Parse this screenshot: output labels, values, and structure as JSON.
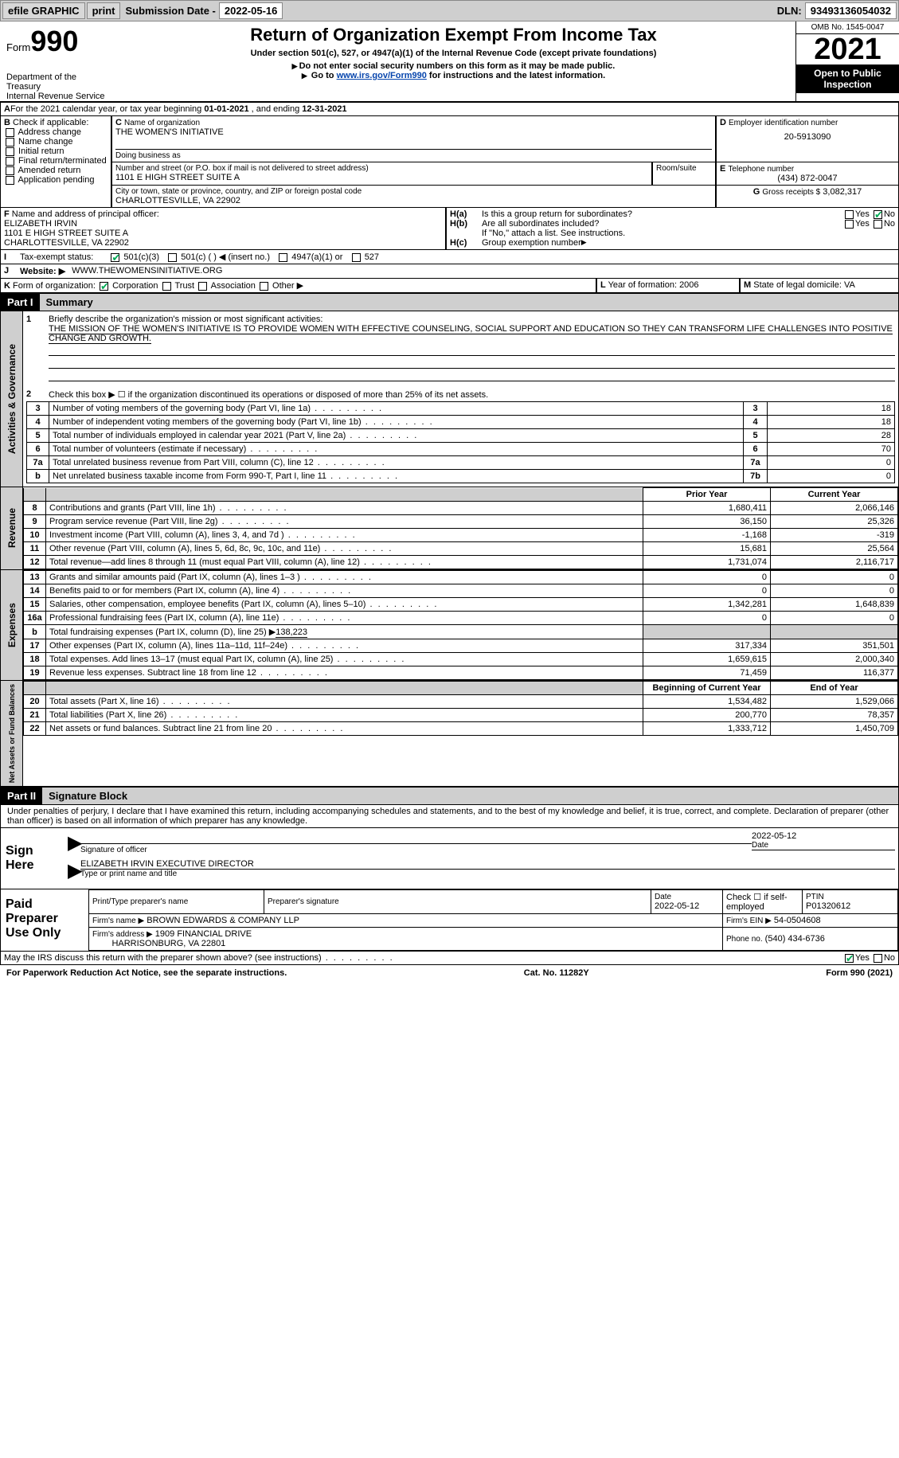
{
  "toolbar": {
    "efile_label": "efile GRAPHIC",
    "print_label": "print",
    "submission_label": "Submission Date -",
    "submission_date": "2022-05-16",
    "dln_label": "DLN:",
    "dln": "93493136054032"
  },
  "header": {
    "form_prefix": "Form",
    "form_number": "990",
    "dept": "Department of the Treasury",
    "irs": "Internal Revenue Service",
    "title": "Return of Organization Exempt From Income Tax",
    "subtitle": "Under section 501(c), 527, or 4947(a)(1) of the Internal Revenue Code (except private foundations)",
    "note1": "Do not enter social security numbers on this form as it may be made public.",
    "note2_prefix": "Go to ",
    "note2_link": "www.irs.gov/Form990",
    "note2_suffix": " for instructions and the latest information.",
    "omb": "OMB No. 1545-0047",
    "year": "2021",
    "inspection": "Open to Public Inspection"
  },
  "line_a": {
    "text_prefix": "For the 2021 calendar year, or tax year beginning ",
    "begin": "01-01-2021",
    "mid": " , and ending ",
    "end": "12-31-2021"
  },
  "box_b": {
    "label": "Check if applicable:",
    "items": [
      "Address change",
      "Name change",
      "Initial return",
      "Final return/terminated",
      "Amended return",
      "Application pending"
    ]
  },
  "box_c": {
    "label": "Name of organization",
    "name": "THE WOMEN'S INITIATIVE",
    "dba_label": "Doing business as",
    "addr_label": "Number and street (or P.O. box if mail is not delivered to street address)",
    "addr": "1101 E HIGH STREET SUITE A",
    "room_label": "Room/suite",
    "city_label": "City or town, state or province, country, and ZIP or foreign postal code",
    "city": "CHARLOTTESVILLE, VA  22902"
  },
  "box_d": {
    "label": "Employer identification number",
    "value": "20-5913090"
  },
  "box_e": {
    "label": "Telephone number",
    "value": "(434) 872-0047"
  },
  "box_g": {
    "label": "Gross receipts $",
    "value": "3,082,317"
  },
  "box_f": {
    "label": "Name and address of principal officer:",
    "name": "ELIZABETH IRVIN",
    "addr1": "1101 E HIGH STREET SUITE A",
    "addr2": "CHARLOTTESVILLE, VA  22902"
  },
  "box_h": {
    "ha": "Is this a group return for subordinates?",
    "hb": "Are all subordinates included?",
    "hnote": "If \"No,\" attach a list. See instructions.",
    "hc": "Group exemption number",
    "yes": "Yes",
    "no": "No"
  },
  "line_i": {
    "label": "Tax-exempt status:",
    "opts": [
      "501(c)(3)",
      "501(c) (  ) ◀ (insert no.)",
      "4947(a)(1) or",
      "527"
    ]
  },
  "line_j": {
    "label": "Website:",
    "value": "WWW.THEWOMENSINITIATIVE.ORG"
  },
  "line_k": {
    "label": "Form of organization:",
    "opts": [
      "Corporation",
      "Trust",
      "Association",
      "Other"
    ]
  },
  "line_l": {
    "label": "Year of formation:",
    "value": "2006"
  },
  "line_m": {
    "label": "State of legal domicile:",
    "value": "VA"
  },
  "part1": {
    "label": "Part I",
    "title": "Summary",
    "side1": "Activities & Governance",
    "line1_label": "Briefly describe the organization's mission or most significant activities:",
    "line1_text": "THE MISSION OF THE WOMEN'S INITIATIVE IS TO PROVIDE WOMEN WITH EFFECTIVE COUNSELING, SOCIAL SUPPORT AND EDUCATION SO THEY CAN TRANSFORM LIFE CHALLENGES INTO POSITIVE CHANGE AND GROWTH.",
    "line2": "Check this box ▶ ☐ if the organization discontinued its operations or disposed of more than 25% of its net assets.",
    "rows_gov": [
      {
        "n": "3",
        "desc": "Number of voting members of the governing body (Part VI, line 1a)",
        "box": "3",
        "val": "18"
      },
      {
        "n": "4",
        "desc": "Number of independent voting members of the governing body (Part VI, line 1b)",
        "box": "4",
        "val": "18"
      },
      {
        "n": "5",
        "desc": "Total number of individuals employed in calendar year 2021 (Part V, line 2a)",
        "box": "5",
        "val": "28"
      },
      {
        "n": "6",
        "desc": "Total number of volunteers (estimate if necessary)",
        "box": "6",
        "val": "70"
      },
      {
        "n": "7a",
        "desc": "Total unrelated business revenue from Part VIII, column (C), line 12",
        "box": "7a",
        "val": "0"
      },
      {
        "n": "b",
        "desc": "Net unrelated business taxable income from Form 990-T, Part I, line 11",
        "box": "7b",
        "val": "0"
      }
    ],
    "side2": "Revenue",
    "prior_label": "Prior Year",
    "current_label": "Current Year",
    "rows_rev": [
      {
        "n": "8",
        "desc": "Contributions and grants (Part VIII, line 1h)",
        "p": "1,680,411",
        "c": "2,066,146"
      },
      {
        "n": "9",
        "desc": "Program service revenue (Part VIII, line 2g)",
        "p": "36,150",
        "c": "25,326"
      },
      {
        "n": "10",
        "desc": "Investment income (Part VIII, column (A), lines 3, 4, and 7d )",
        "p": "-1,168",
        "c": "-319"
      },
      {
        "n": "11",
        "desc": "Other revenue (Part VIII, column (A), lines 5, 6d, 8c, 9c, 10c, and 11e)",
        "p": "15,681",
        "c": "25,564"
      },
      {
        "n": "12",
        "desc": "Total revenue—add lines 8 through 11 (must equal Part VIII, column (A), line 12)",
        "p": "1,731,074",
        "c": "2,116,717"
      }
    ],
    "side3": "Expenses",
    "rows_exp": [
      {
        "n": "13",
        "desc": "Grants and similar amounts paid (Part IX, column (A), lines 1–3 )",
        "p": "0",
        "c": "0"
      },
      {
        "n": "14",
        "desc": "Benefits paid to or for members (Part IX, column (A), line 4)",
        "p": "0",
        "c": "0"
      },
      {
        "n": "15",
        "desc": "Salaries, other compensation, employee benefits (Part IX, column (A), lines 5–10)",
        "p": "1,342,281",
        "c": "1,648,839"
      },
      {
        "n": "16a",
        "desc": "Professional fundraising fees (Part IX, column (A), line 11e)",
        "p": "0",
        "c": "0"
      }
    ],
    "line16b_label": "Total fundraising expenses (Part IX, column (D), line 25) ▶",
    "line16b_val": "138,223",
    "rows_exp2": [
      {
        "n": "17",
        "desc": "Other expenses (Part IX, column (A), lines 11a–11d, 11f–24e)",
        "p": "317,334",
        "c": "351,501"
      },
      {
        "n": "18",
        "desc": "Total expenses. Add lines 13–17 (must equal Part IX, column (A), line 25)",
        "p": "1,659,615",
        "c": "2,000,340"
      },
      {
        "n": "19",
        "desc": "Revenue less expenses. Subtract line 18 from line 12",
        "p": "71,459",
        "c": "116,377"
      }
    ],
    "side4": "Net Assets or Fund Balances",
    "begin_label": "Beginning of Current Year",
    "end_label": "End of Year",
    "rows_net": [
      {
        "n": "20",
        "desc": "Total assets (Part X, line 16)",
        "p": "1,534,482",
        "c": "1,529,066"
      },
      {
        "n": "21",
        "desc": "Total liabilities (Part X, line 26)",
        "p": "200,770",
        "c": "78,357"
      },
      {
        "n": "22",
        "desc": "Net assets or fund balances. Subtract line 21 from line 20",
        "p": "1,333,712",
        "c": "1,450,709"
      }
    ]
  },
  "part2": {
    "label": "Part II",
    "title": "Signature Block",
    "declaration": "Under penalties of perjury, I declare that I have examined this return, including accompanying schedules and statements, and to the best of my knowledge and belief, it is true, correct, and complete. Declaration of preparer (other than officer) is based on all information of which preparer has any knowledge.",
    "sign_here": "Sign Here",
    "sig_officer": "Signature of officer",
    "sig_date": "2022-05-12",
    "sig_date_label": "Date",
    "officer_name": "ELIZABETH IRVIN  EXECUTIVE DIRECTOR",
    "officer_label": "Type or print name and title",
    "paid": "Paid Preparer Use Only",
    "prep_name_label": "Print/Type preparer's name",
    "prep_sig_label": "Preparer's signature",
    "prep_date_label": "Date",
    "prep_date": "2022-05-12",
    "check_self": "Check ☐ if self-employed",
    "ptin_label": "PTIN",
    "ptin": "P01320612",
    "firm_name_label": "Firm's name    ▶",
    "firm_name": "BROWN EDWARDS & COMPANY LLP",
    "firm_ein_label": "Firm's EIN ▶",
    "firm_ein": "54-0504608",
    "firm_addr_label": "Firm's address ▶",
    "firm_addr1": "1909 FINANCIAL DRIVE",
    "firm_addr2": "HARRISONBURG, VA  22801",
    "phone_label": "Phone no.",
    "phone": "(540) 434-6736",
    "discuss": "May the IRS discuss this return with the preparer shown above? (see instructions)"
  },
  "footer": {
    "left": "For Paperwork Reduction Act Notice, see the separate instructions.",
    "mid": "Cat. No. 11282Y",
    "right": "Form 990 (2021)"
  }
}
